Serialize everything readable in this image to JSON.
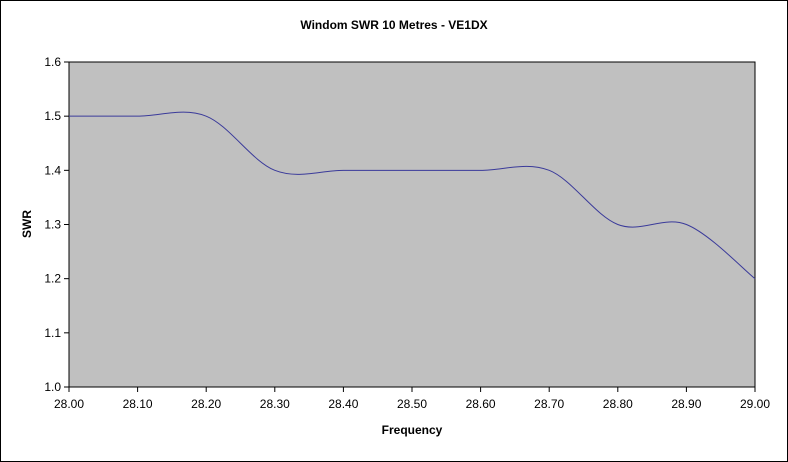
{
  "chart_data": {
    "type": "line",
    "title": "Windom SWR 10 Metres - VE1DX",
    "xlabel": "Frequency",
    "ylabel": "SWR",
    "xlim": [
      28.0,
      29.0
    ],
    "ylim": [
      1.0,
      1.6
    ],
    "x_ticks": [
      "28.00",
      "28.10",
      "28.20",
      "28.30",
      "28.40",
      "28.50",
      "28.60",
      "28.70",
      "28.80",
      "28.90",
      "29.00"
    ],
    "y_ticks": [
      "1.0",
      "1.1",
      "1.2",
      "1.3",
      "1.4",
      "1.5",
      "1.6"
    ],
    "grid": false,
    "smoothed": true,
    "colors": {
      "plot_area": "#c0c0c0",
      "line": "#3a3a9a",
      "axis": "#000000"
    },
    "series": [
      {
        "x": [
          28.0,
          28.1,
          28.2,
          28.3,
          28.4,
          28.5,
          28.6,
          28.7,
          28.8,
          28.9,
          29.0
        ],
        "y": [
          1.5,
          1.5,
          1.5,
          1.4,
          1.4,
          1.4,
          1.4,
          1.4,
          1.3,
          1.3,
          1.2
        ]
      }
    ]
  }
}
